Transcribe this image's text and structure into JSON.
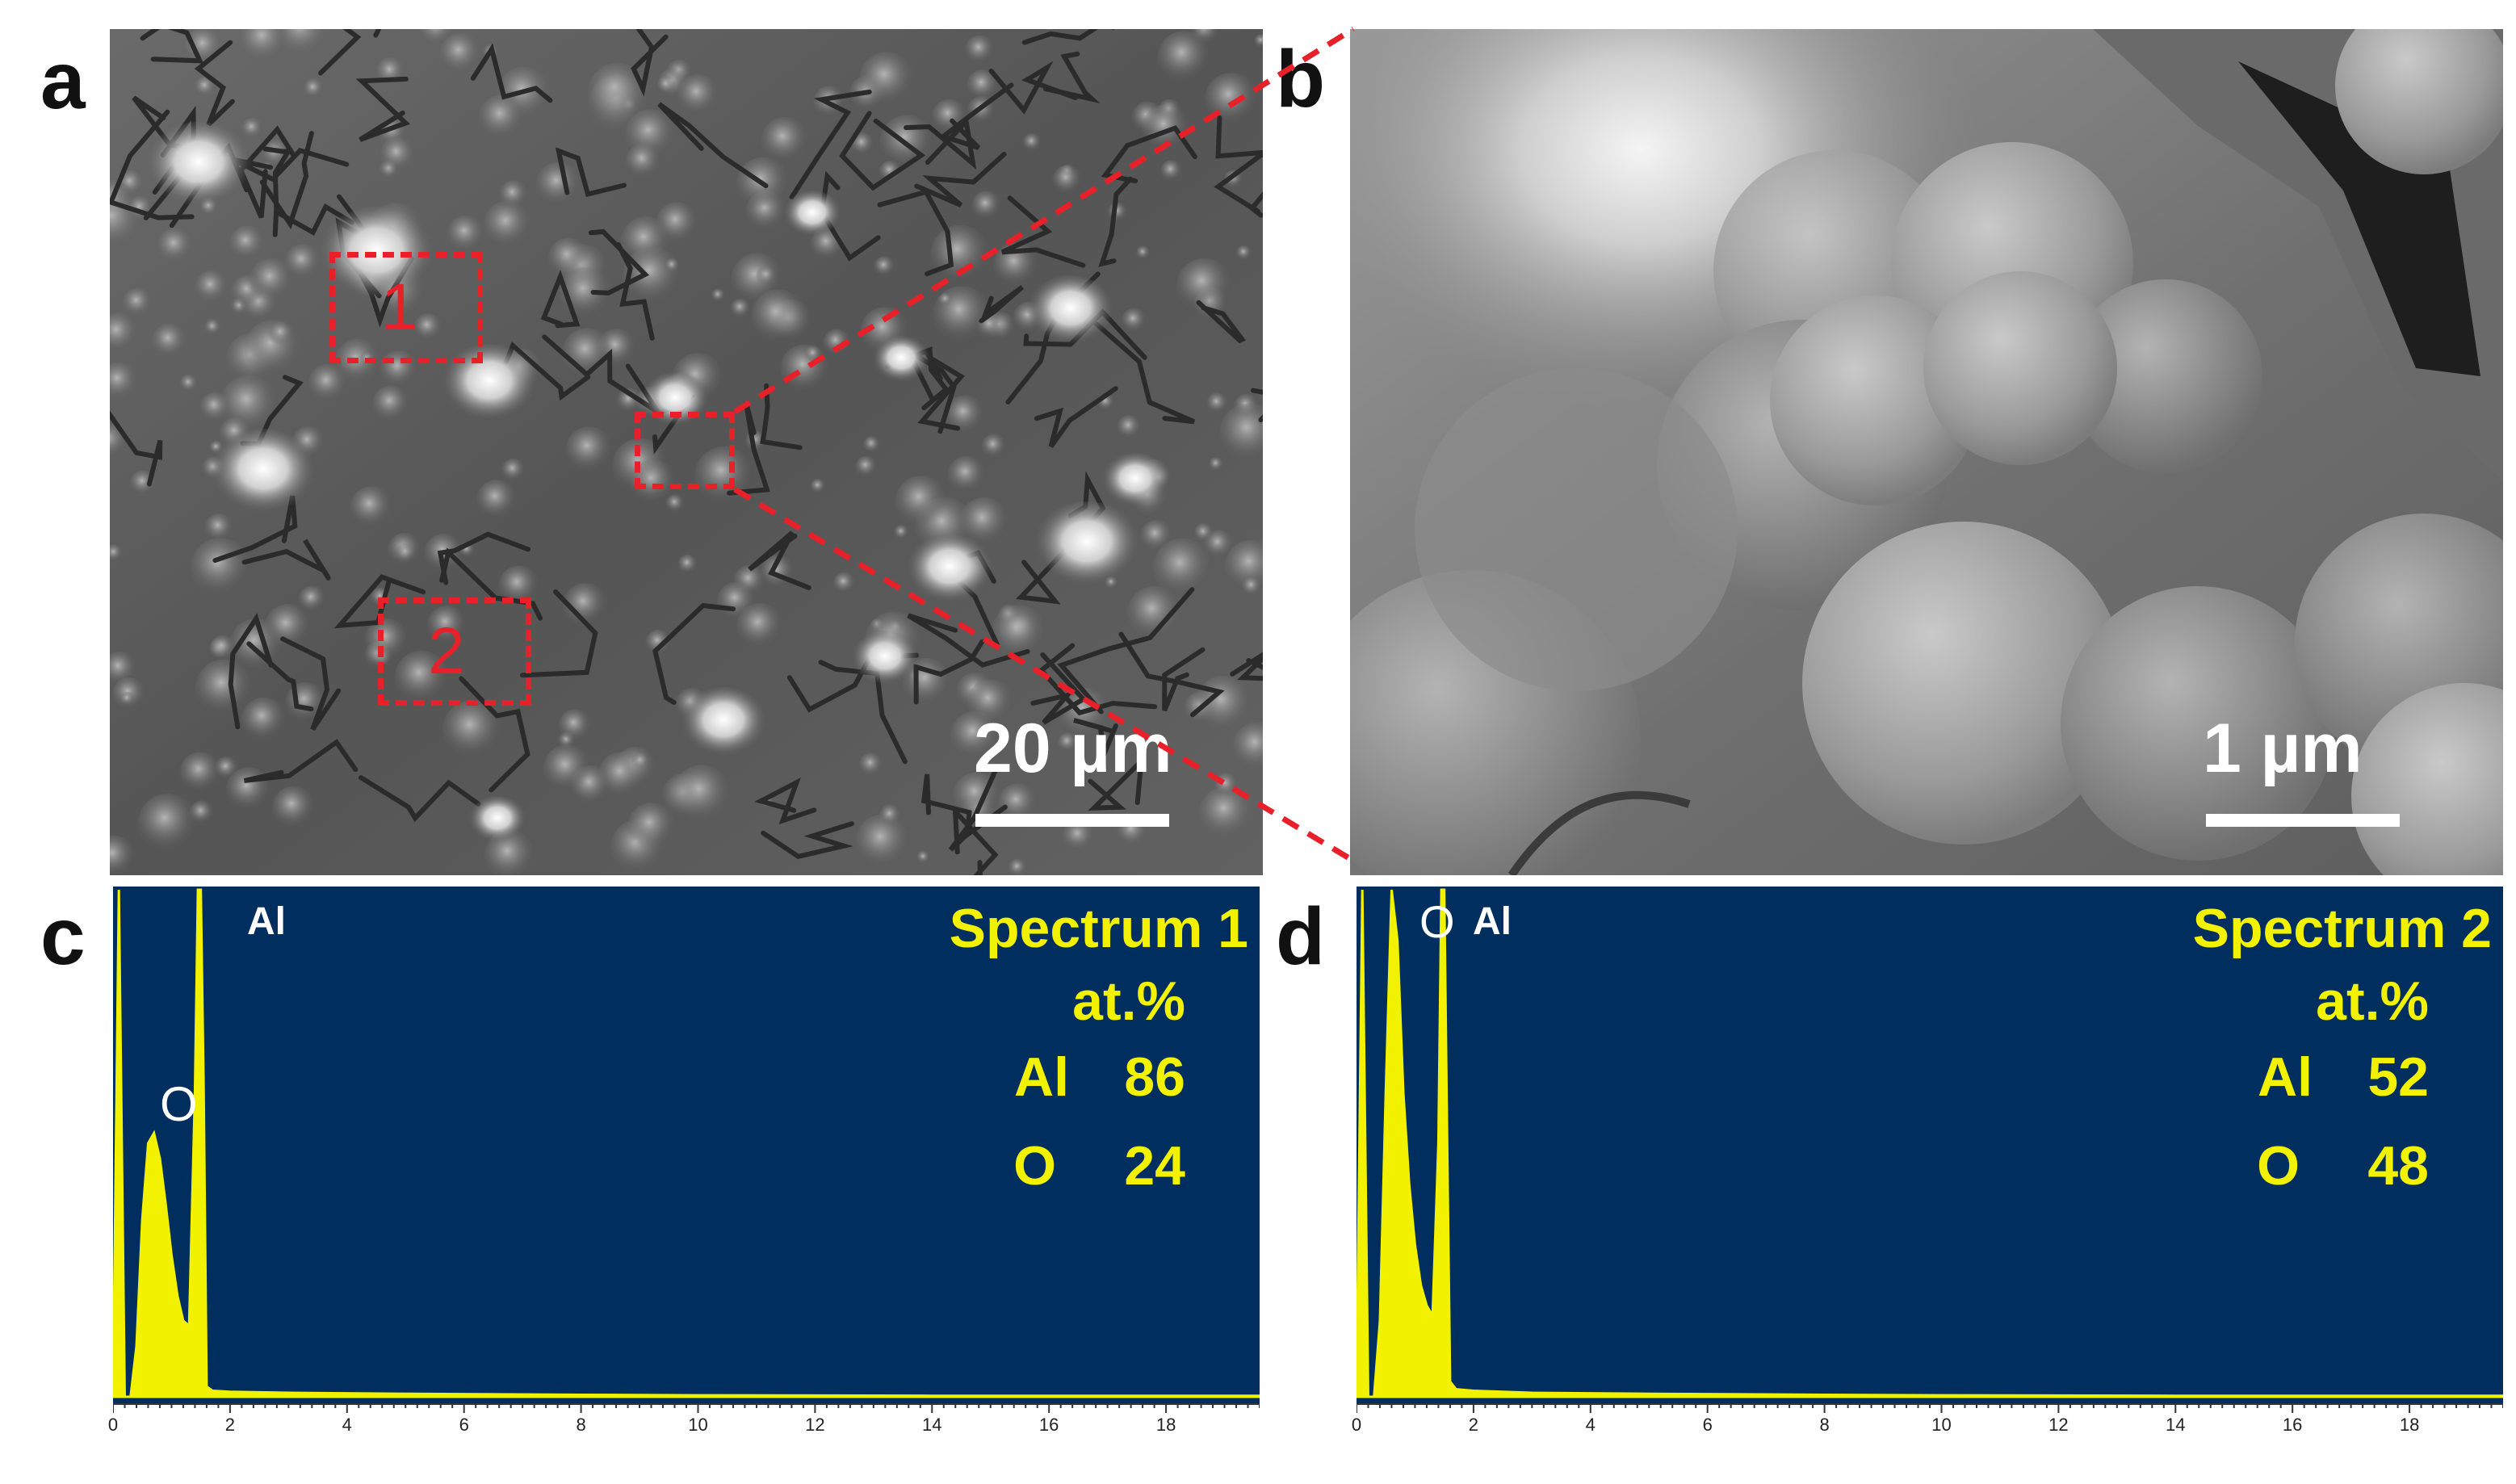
{
  "panels": {
    "a": {
      "letter": "a",
      "scale_label": "20 µm",
      "regions": [
        {
          "label": "1"
        },
        {
          "label": "2"
        }
      ]
    },
    "b": {
      "letter": "b",
      "scale_label": "1 µm"
    },
    "c": {
      "letter": "c"
    },
    "d": {
      "letter": "d"
    }
  },
  "colors": {
    "spectrum_bg": "#002e5f",
    "spectrum_fg": "#f2f200",
    "region": "#e8202a"
  },
  "chart_data": [
    {
      "type": "area",
      "title": "Spectrum 1",
      "unit_label": "at.%",
      "peak_labels": [
        "O",
        "Al"
      ],
      "table": [
        {
          "element": "Al",
          "value": "86"
        },
        {
          "element": "O",
          "value": "24"
        }
      ],
      "xlim": [
        0,
        19.6
      ],
      "x_ticks": [
        0,
        2,
        4,
        6,
        8,
        10,
        12,
        14,
        16,
        18
      ],
      "x": [
        0,
        0.1,
        0.2,
        0.3,
        0.4,
        0.5,
        0.6,
        0.7,
        0.8,
        0.9,
        1.0,
        1.1,
        1.2,
        1.3,
        1.4,
        1.45,
        1.5,
        1.55,
        1.6,
        1.7,
        2,
        3,
        5,
        8,
        10,
        14,
        19.6
      ],
      "y": [
        0,
        100,
        0,
        0,
        0.1,
        0.35,
        0.5,
        0.52,
        0.47,
        0.38,
        0.28,
        0.2,
        0.15,
        0.14,
        0.6,
        1.0,
        1.0,
        0.6,
        0.02,
        0.012,
        0.01,
        0.008,
        0.006,
        0.004,
        0.003,
        0.002,
        0.002
      ]
    },
    {
      "type": "area",
      "title": "Spectrum 2",
      "unit_label": "at.%",
      "peak_labels": [
        "O",
        "Al"
      ],
      "table": [
        {
          "element": "Al",
          "value": "52"
        },
        {
          "element": "O",
          "value": "48"
        }
      ],
      "xlim": [
        0,
        19.6
      ],
      "x_ticks": [
        0,
        2,
        4,
        6,
        8,
        10,
        12,
        14,
        16,
        18
      ],
      "x": [
        0,
        0.1,
        0.2,
        0.3,
        0.4,
        0.5,
        0.6,
        0.7,
        0.8,
        0.9,
        1.0,
        1.1,
        1.2,
        1.3,
        1.4,
        1.45,
        1.5,
        1.55,
        1.6,
        1.7,
        2,
        3,
        5,
        8,
        10,
        14,
        19.6
      ],
      "y": [
        0,
        100,
        0,
        0,
        0.15,
        0.6,
        1.0,
        0.9,
        0.6,
        0.42,
        0.3,
        0.22,
        0.18,
        0.16,
        0.5,
        1.0,
        1.0,
        0.5,
        0.03,
        0.015,
        0.012,
        0.008,
        0.006,
        0.004,
        0.003,
        0.002,
        0.002
      ]
    }
  ]
}
